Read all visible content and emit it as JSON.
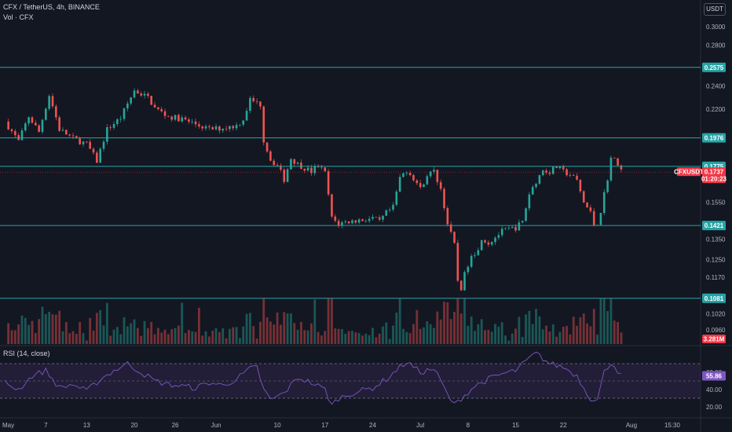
{
  "header": {
    "symbol_title": "CFX / TetherUS, 4h, BINANCE",
    "volume_label": "Vol · CFX",
    "rsi_label": "RSI (14, close)",
    "currency": "USDT"
  },
  "colors": {
    "background": "#131722",
    "up": "#26a69a",
    "down": "#ef5350",
    "level": "#26a3a5",
    "rsi_line": "#7e57c2",
    "rsi_band": "#2a2240",
    "price_badge": "#f23645"
  },
  "chart_data": [
    {
      "type": "candlestick",
      "x_axis": {
        "labels": [
          "May",
          "7",
          "13",
          "20",
          "26",
          "Jun",
          "10",
          "17",
          "24",
          "Jul",
          "8",
          "15",
          "22",
          "Aug",
          "15:30"
        ],
        "label_days": [
          0,
          6,
          12,
          19,
          25,
          31,
          40,
          47,
          54,
          61,
          68,
          75,
          82,
          92,
          98
        ]
      },
      "y_axis": {
        "scale": "log",
        "ticks": [
          "0.3000",
          "0.2800",
          "0.2400",
          "0.2200",
          "0.1550",
          "0.1350",
          "0.1250",
          "0.1170",
          "0.1020",
          "0.0960"
        ],
        "tick_values": [
          0.3,
          0.28,
          0.24,
          0.22,
          0.155,
          0.135,
          0.125,
          0.117,
          0.102,
          0.096
        ]
      },
      "price_path": [
        [
          0,
          0.21
        ],
        [
          2,
          0.195
        ],
        [
          3.5,
          0.214
        ],
        [
          5,
          0.202
        ],
        [
          6.5,
          0.232
        ],
        [
          8,
          0.204
        ],
        [
          10,
          0.197
        ],
        [
          12,
          0.193
        ],
        [
          13.5,
          0.181
        ],
        [
          15,
          0.204
        ],
        [
          17,
          0.213
        ],
        [
          19,
          0.236
        ],
        [
          21,
          0.23
        ],
        [
          22,
          0.221
        ],
        [
          24,
          0.214
        ],
        [
          26,
          0.212
        ],
        [
          28,
          0.208
        ],
        [
          30,
          0.204
        ],
        [
          32,
          0.205
        ],
        [
          34,
          0.207
        ],
        [
          35,
          0.212
        ],
        [
          36,
          0.228
        ],
        [
          37.5,
          0.224
        ],
        [
          38,
          0.196
        ],
        [
          39,
          0.182
        ],
        [
          40,
          0.178
        ],
        [
          41,
          0.169
        ],
        [
          42,
          0.183
        ],
        [
          43,
          0.179
        ],
        [
          45,
          0.174
        ],
        [
          46,
          0.178
        ],
        [
          47,
          0.173
        ],
        [
          48,
          0.146
        ],
        [
          49,
          0.143
        ],
        [
          50,
          0.144
        ],
        [
          52,
          0.145
        ],
        [
          54,
          0.146
        ],
        [
          55,
          0.144
        ],
        [
          56,
          0.149
        ],
        [
          57,
          0.152
        ],
        [
          58,
          0.17
        ],
        [
          59,
          0.175
        ],
        [
          60,
          0.17
        ],
        [
          61,
          0.163
        ],
        [
          62,
          0.172
        ],
        [
          63,
          0.174
        ],
        [
          64,
          0.163
        ],
        [
          65,
          0.143
        ],
        [
          66,
          0.132
        ],
        [
          66.7,
          0.109
        ],
        [
          67.5,
          0.118
        ],
        [
          68.5,
          0.128
        ],
        [
          69.5,
          0.129
        ],
        [
          70,
          0.136
        ],
        [
          71,
          0.133
        ],
        [
          73,
          0.139
        ],
        [
          75,
          0.141
        ],
        [
          76,
          0.144
        ],
        [
          77,
          0.16
        ],
        [
          78,
          0.168
        ],
        [
          79,
          0.175
        ],
        [
          80,
          0.174
        ],
        [
          81,
          0.177
        ],
        [
          82,
          0.174
        ],
        [
          83,
          0.172
        ],
        [
          84,
          0.168
        ],
        [
          85,
          0.155
        ],
        [
          86,
          0.149
        ],
        [
          86.7,
          0.14
        ],
        [
          87.5,
          0.15
        ],
        [
          88.5,
          0.17
        ],
        [
          89,
          0.183
        ],
        [
          90,
          0.18
        ],
        [
          90.5,
          0.175
        ]
      ],
      "horizontal_levels": [
        {
          "price": 0.2575,
          "label": "0.2575"
        },
        {
          "price": 0.1976,
          "label": "0.1976"
        },
        {
          "price": 0.1775,
          "label": "0.1775"
        },
        {
          "price": 0.1421,
          "label": "0.1421"
        },
        {
          "price": 0.1081,
          "label": "0.1081"
        }
      ],
      "current_price": {
        "label": "CFXUSDT",
        "value": "0.1737",
        "countdown": "01:20:23"
      },
      "volume_badge": "3.281M"
    },
    {
      "type": "line",
      "name": "RSI (14, close)",
      "y_ticks": [
        "60.00",
        "40.00",
        "20.00"
      ],
      "tick_values": [
        60,
        40,
        20
      ],
      "band": {
        "upper": 70,
        "middle": 50,
        "lower": 30
      },
      "current_value": "55.86",
      "rsi_path": [
        [
          0,
          48
        ],
        [
          2,
          40
        ],
        [
          4,
          56
        ],
        [
          6,
          62
        ],
        [
          8,
          42
        ],
        [
          10,
          46
        ],
        [
          12,
          38
        ],
        [
          14,
          52
        ],
        [
          16,
          62
        ],
        [
          18,
          70
        ],
        [
          20,
          60
        ],
        [
          22,
          50
        ],
        [
          24,
          46
        ],
        [
          26,
          44
        ],
        [
          28,
          42
        ],
        [
          30,
          48
        ],
        [
          32,
          45
        ],
        [
          34,
          52
        ],
        [
          36,
          64
        ],
        [
          37,
          66
        ],
        [
          38,
          40
        ],
        [
          39,
          28
        ],
        [
          41,
          36
        ],
        [
          43,
          54
        ],
        [
          45,
          48
        ],
        [
          47,
          40
        ],
        [
          48,
          22
        ],
        [
          49,
          30
        ],
        [
          51,
          36
        ],
        [
          54,
          42
        ],
        [
          56,
          52
        ],
        [
          58,
          66
        ],
        [
          59,
          72
        ],
        [
          61,
          60
        ],
        [
          63,
          64
        ],
        [
          64,
          50
        ],
        [
          65,
          34
        ],
        [
          66,
          22
        ],
        [
          67,
          30
        ],
        [
          69,
          44
        ],
        [
          71,
          52
        ],
        [
          73,
          58
        ],
        [
          75,
          62
        ],
        [
          77,
          76
        ],
        [
          78,
          82
        ],
        [
          80,
          70
        ],
        [
          82,
          66
        ],
        [
          84,
          56
        ],
        [
          85,
          42
        ],
        [
          86,
          30
        ],
        [
          87,
          28
        ],
        [
          88,
          60
        ],
        [
          89,
          72
        ],
        [
          90,
          62
        ],
        [
          90.5,
          56
        ]
      ]
    }
  ]
}
